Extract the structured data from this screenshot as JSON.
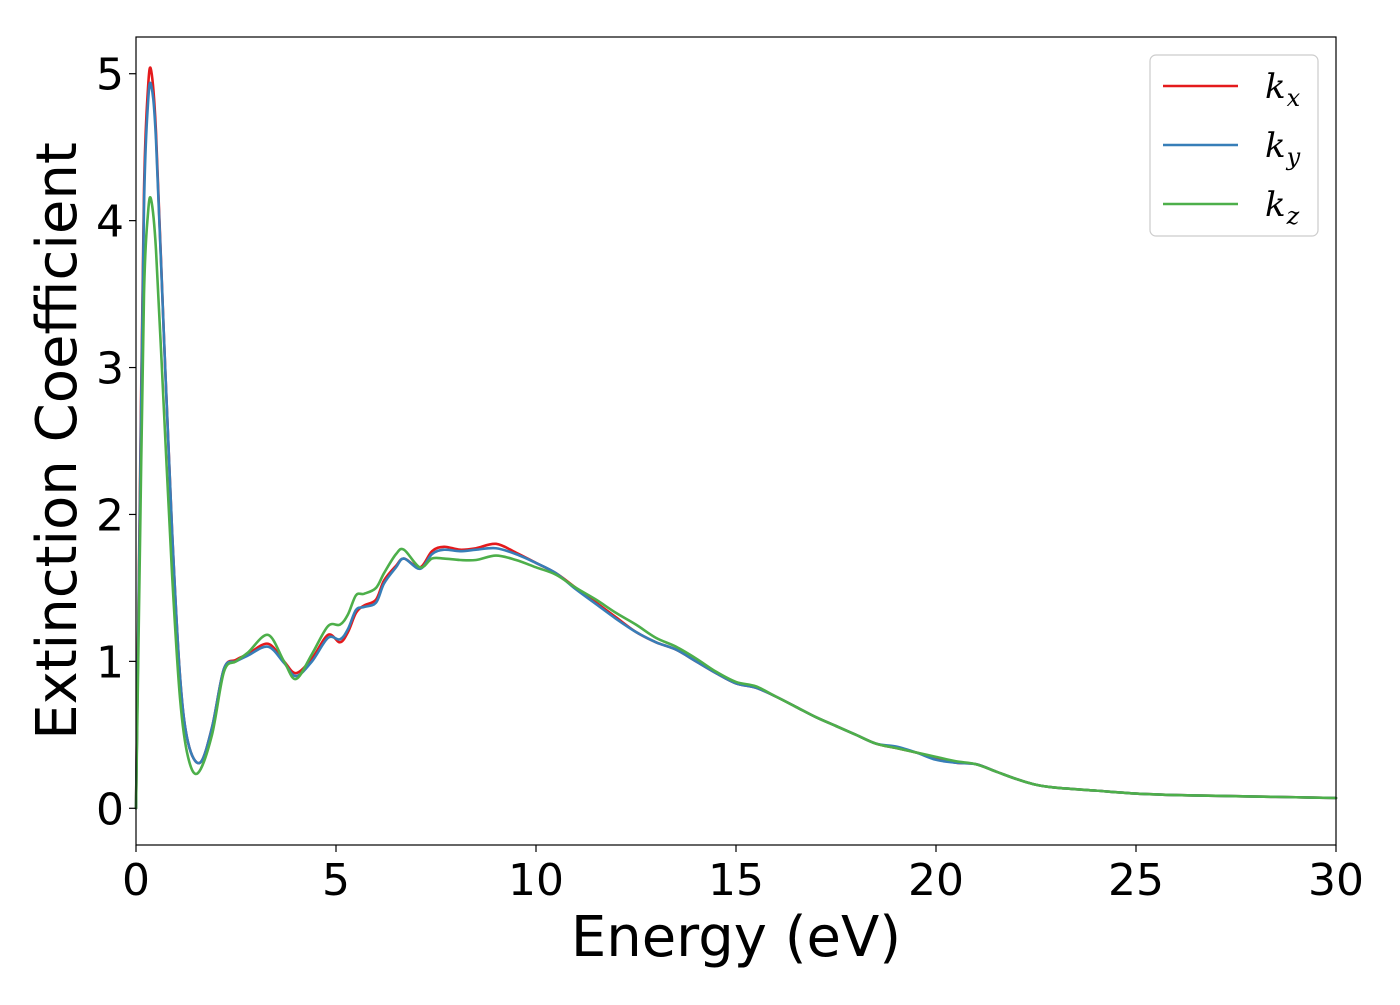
{
  "chart_data": {
    "type": "line",
    "title": "",
    "xlabel": "Energy (eV)",
    "ylabel": "Extinction Coefficient",
    "xlim": [
      0,
      30
    ],
    "ylim": [
      -0.25,
      5.25
    ],
    "xticks": [
      0,
      5,
      10,
      15,
      20,
      25,
      30
    ],
    "yticks": [
      0,
      1,
      2,
      3,
      4,
      5
    ],
    "grid": false,
    "legend_position": "top-right",
    "series": [
      {
        "name": "k_x",
        "legend_main": "k",
        "legend_sub": "x",
        "color": "#e41a1c",
        "x": [
          0,
          0.1,
          0.2,
          0.3,
          0.38,
          0.5,
          0.7,
          0.9,
          1.1,
          1.3,
          1.6,
          1.9,
          2.2,
          2.5,
          2.8,
          3.3,
          3.7,
          4.0,
          4.4,
          4.8,
          5.1,
          5.3,
          5.5,
          5.7,
          6.0,
          6.2,
          6.5,
          6.7,
          7.1,
          7.4,
          7.7,
          8.1,
          8.5,
          9.0,
          9.5,
          10.0,
          10.5,
          11.0,
          11.5,
          12.0,
          12.5,
          13.0,
          13.5,
          14.0,
          14.5,
          15.0,
          15.5,
          16.0,
          16.5,
          17.0,
          17.5,
          18.0,
          18.5,
          19.0,
          19.5,
          20.0,
          20.5,
          21.0,
          21.5,
          22.0,
          22.5,
          23.0,
          24.0,
          25.0,
          26.0,
          27.0,
          28.0,
          29.0,
          30.0
        ],
        "values": [
          0,
          2.2,
          4.2,
          4.9,
          5.02,
          4.6,
          3.2,
          1.9,
          0.9,
          0.45,
          0.31,
          0.55,
          0.95,
          1.01,
          1.05,
          1.12,
          1.0,
          0.92,
          1.02,
          1.18,
          1.13,
          1.2,
          1.33,
          1.38,
          1.42,
          1.55,
          1.65,
          1.7,
          1.64,
          1.75,
          1.78,
          1.76,
          1.77,
          1.8,
          1.74,
          1.67,
          1.6,
          1.5,
          1.4,
          1.3,
          1.2,
          1.13,
          1.08,
          1.0,
          0.92,
          0.85,
          0.82,
          0.76,
          0.69,
          0.62,
          0.56,
          0.5,
          0.44,
          0.41,
          0.38,
          0.34,
          0.31,
          0.3,
          0.25,
          0.2,
          0.16,
          0.14,
          0.12,
          0.1,
          0.09,
          0.085,
          0.08,
          0.075,
          0.07
        ]
      },
      {
        "name": "k_y",
        "legend_main": "k",
        "legend_sub": "y",
        "color": "#377eb8",
        "x": [
          0,
          0.1,
          0.2,
          0.3,
          0.38,
          0.5,
          0.7,
          0.9,
          1.1,
          1.3,
          1.6,
          1.9,
          2.2,
          2.5,
          2.8,
          3.3,
          3.7,
          4.0,
          4.4,
          4.8,
          5.1,
          5.3,
          5.5,
          5.7,
          6.0,
          6.2,
          6.5,
          6.7,
          7.1,
          7.4,
          7.7,
          8.1,
          8.5,
          9.0,
          9.5,
          10.0,
          10.5,
          11.0,
          11.5,
          12.0,
          12.5,
          13.0,
          13.5,
          14.0,
          14.5,
          15.0,
          15.5,
          16.0,
          16.5,
          17.0,
          17.5,
          18.0,
          18.5,
          19.0,
          19.5,
          20.0,
          20.5,
          21.0,
          21.5,
          22.0,
          22.5,
          23.0,
          24.0,
          25.0,
          26.0,
          27.0,
          28.0,
          29.0,
          30.0
        ],
        "values": [
          0,
          2.1,
          4.1,
          4.8,
          4.92,
          4.55,
          3.2,
          1.9,
          0.9,
          0.45,
          0.31,
          0.55,
          0.95,
          1.0,
          1.04,
          1.1,
          0.99,
          0.9,
          1.0,
          1.16,
          1.15,
          1.22,
          1.35,
          1.37,
          1.4,
          1.53,
          1.64,
          1.7,
          1.63,
          1.73,
          1.76,
          1.75,
          1.76,
          1.77,
          1.73,
          1.67,
          1.6,
          1.49,
          1.39,
          1.29,
          1.2,
          1.13,
          1.08,
          1.0,
          0.92,
          0.85,
          0.82,
          0.76,
          0.69,
          0.62,
          0.56,
          0.5,
          0.44,
          0.42,
          0.38,
          0.33,
          0.31,
          0.3,
          0.25,
          0.2,
          0.16,
          0.14,
          0.12,
          0.1,
          0.09,
          0.085,
          0.08,
          0.075,
          0.07
        ]
      },
      {
        "name": "k_z",
        "legend_main": "k",
        "legend_sub": "z",
        "color": "#4daf4a",
        "x": [
          0,
          0.1,
          0.2,
          0.3,
          0.38,
          0.5,
          0.7,
          0.9,
          1.1,
          1.3,
          1.55,
          1.9,
          2.2,
          2.5,
          2.8,
          3.3,
          3.7,
          4.0,
          4.4,
          4.8,
          5.1,
          5.3,
          5.5,
          5.7,
          6.0,
          6.2,
          6.5,
          6.7,
          7.1,
          7.4,
          7.7,
          8.1,
          8.5,
          9.0,
          9.5,
          10.0,
          10.5,
          11.0,
          11.5,
          12.0,
          12.5,
          13.0,
          13.5,
          14.0,
          14.5,
          15.0,
          15.5,
          16.0,
          16.5,
          17.0,
          17.5,
          18.0,
          18.5,
          19.0,
          19.5,
          20.0,
          20.5,
          21.0,
          21.5,
          22.0,
          22.5,
          23.0,
          24.0,
          25.0,
          26.0,
          27.0,
          28.0,
          29.0,
          30.0
        ],
        "values": [
          0,
          1.8,
          3.5,
          4.05,
          4.14,
          3.8,
          2.7,
          1.6,
          0.75,
          0.35,
          0.24,
          0.5,
          0.93,
          1.0,
          1.06,
          1.18,
          1.0,
          0.88,
          1.05,
          1.24,
          1.25,
          1.32,
          1.45,
          1.46,
          1.5,
          1.6,
          1.73,
          1.76,
          1.64,
          1.7,
          1.7,
          1.69,
          1.69,
          1.72,
          1.69,
          1.64,
          1.59,
          1.5,
          1.42,
          1.33,
          1.25,
          1.16,
          1.1,
          1.02,
          0.93,
          0.86,
          0.83,
          0.76,
          0.69,
          0.62,
          0.56,
          0.5,
          0.44,
          0.41,
          0.38,
          0.35,
          0.32,
          0.3,
          0.25,
          0.2,
          0.16,
          0.14,
          0.12,
          0.1,
          0.09,
          0.085,
          0.08,
          0.075,
          0.07
        ]
      }
    ]
  }
}
